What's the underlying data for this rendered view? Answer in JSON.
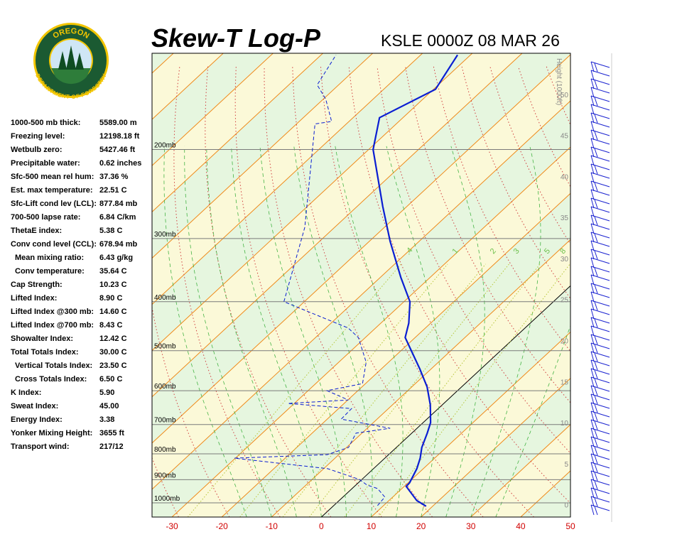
{
  "header": {
    "logo_top": "OREGON",
    "logo_bottom": "DEPARTMENT OF FORESTRY"
  },
  "indices": [
    {
      "label": "1000-500 mb thick:",
      "value": "5589.00 m"
    },
    {
      "label": "Freezing level:",
      "value": "12198.18 ft"
    },
    {
      "label": "Wetbulb zero:",
      "value": "5427.46 ft"
    },
    {
      "label": "Precipitable water:",
      "value": "0.62 inches"
    },
    {
      "label": "Sfc-500 mean rel hum:",
      "value": "37.36 %"
    },
    {
      "label": "Est. max temperature:",
      "value": "22.51 C"
    },
    {
      "label": "Sfc-Lift cond lev (LCL):",
      "value": "877.84 mb"
    },
    {
      "label": "700-500 lapse rate:",
      "value": "6.84 C/km"
    },
    {
      "label": "ThetaE index:",
      "value": "5.38 C"
    },
    {
      "label": "Conv cond level (CCL):",
      "value": "678.94 mb"
    },
    {
      "label": "Mean mixing ratio:",
      "value": "6.43 g/kg"
    },
    {
      "label": "Conv temperature:",
      "value": "35.64 C"
    },
    {
      "label": "Cap Strength:",
      "value": "10.23 C"
    },
    {
      "label": "Lifted Index:",
      "value": "8.90 C"
    },
    {
      "label": "Lifted Index @300 mb:",
      "value": "14.60 C"
    },
    {
      "label": "Lifted Index @700 mb:",
      "value": "8.43 C"
    },
    {
      "label": "Showalter Index:",
      "value": "12.42 C"
    },
    {
      "label": "Total Totals Index:",
      "value": "30.00 C"
    },
    {
      "label": "Vertical Totals Index:",
      "value": "23.50 C"
    },
    {
      "label": "Cross Totals Index:",
      "value": "6.50 C"
    },
    {
      "label": "K Index:",
      "value": "5.90"
    },
    {
      "label": "Sweat Index:",
      "value": "45.00"
    },
    {
      "label": "Energy Index:",
      "value": "3.38"
    },
    {
      "label": "Yonker Mixing Height:",
      "value": "3655 ft"
    },
    {
      "label": "Transport wind:",
      "value": "217/12"
    }
  ],
  "chart_data": {
    "type": "skewt",
    "title": "Skew-T Log-P",
    "subtitle": "KSLE 0000Z 08 MAR 26",
    "xlim": [
      -34,
      50
    ],
    "xticks": [
      -30,
      -20,
      -10,
      0,
      10,
      20,
      30,
      40,
      50
    ],
    "ylim": [
      1067,
      129
    ],
    "ylog": true,
    "yticks": [
      {
        "value": 1000,
        "label": "1000mb"
      },
      {
        "value": 900,
        "label": "900mb"
      },
      {
        "value": 800,
        "label": "800mb"
      },
      {
        "value": 700,
        "label": "700mb"
      },
      {
        "value": 600,
        "label": "600mb"
      },
      {
        "value": 500,
        "label": "500mb"
      },
      {
        "value": 400,
        "label": "400mb"
      },
      {
        "value": 300,
        "label": "300mb"
      },
      {
        "value": 200,
        "label": "200mb"
      }
    ],
    "y2label": "Height (1000ft)",
    "y2lim": [
      -1.5,
      55
    ],
    "y2ticks": [
      0,
      5,
      10,
      15,
      20,
      25,
      30,
      35,
      40,
      45,
      50
    ],
    "mixing_ratios": [
      {
        "value": 0.4,
        "label": ".4"
      },
      1,
      2,
      3,
      5,
      8
    ],
    "series": [
      {
        "color": "#0a1ed2",
        "dashed": false,
        "pressure": [
          1016,
          990,
          928,
          913,
          856,
          816,
          777,
          728,
          694,
          640,
          590,
          544,
          471,
          441,
          400,
          358,
          304,
          259,
          200,
          173,
          152,
          130
        ],
        "values": [
          18.7,
          15.6,
          10.4,
          10.3,
          8.7,
          7.1,
          5.1,
          3.1,
          1.5,
          -2.4,
          -6.9,
          -12.2,
          -22.0,
          -24.4,
          -28.8,
          -35.9,
          -45.8,
          -54.9,
          -69.1,
          -74.7,
          -69.6,
          -72.6
        ]
      },
      {
        "color": "#0a1ed2",
        "dashed": true,
        "pressure": [
          1013,
          974,
          937,
          922,
          899,
          856,
          816,
          803,
          777,
          728,
          712,
          683,
          651,
          636,
          626,
          600,
          581,
          527,
          471,
          451,
          400,
          285,
          206,
          178,
          176,
          159,
          149,
          130
        ],
        "values": [
          8.8,
          8.4,
          5.1,
          2.2,
          -0.5,
          -9.2,
          -30.2,
          -12.3,
          -9.6,
          -11.2,
          -5.4,
          -17.2,
          -17.4,
          -31.3,
          -19.9,
          -26.2,
          -20.6,
          -24.5,
          -31.4,
          -35.5,
          -54.1,
          -66.0,
          -80.0,
          -86.3,
          -83.5,
          -89.5,
          -94.3,
          -97.0
        ]
      }
    ]
  }
}
